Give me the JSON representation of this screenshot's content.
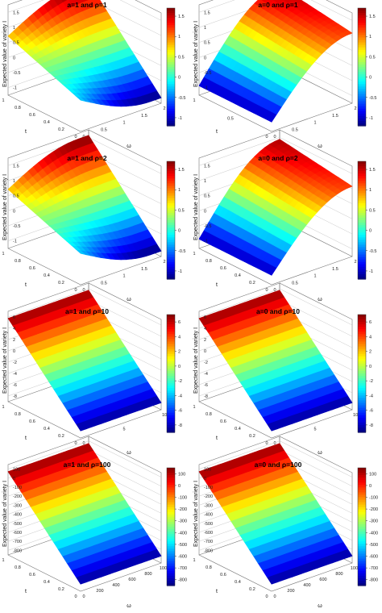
{
  "chart_data": [
    {
      "type": "surface",
      "title": "a=1 and ρ=1",
      "xlabel": "t",
      "ylabel": "ω",
      "zlabel": "Expected value of variety I",
      "x_ticks": [
        "0",
        "0.2",
        "0.4",
        "0.6",
        "0.8",
        "1"
      ],
      "y_ticks": [
        "0",
        "0.5",
        "1",
        "1.5",
        "2"
      ],
      "z_ticks": [
        "-1",
        "-0.5",
        "0",
        "0.5",
        "1",
        "1.5"
      ],
      "colorbar_ticks": [
        "-1",
        "-0.5",
        "0",
        "0.5",
        "1",
        "1.5"
      ],
      "zlim": [
        -1.2,
        1.7
      ],
      "surface_shape": "concave",
      "z_range": [
        -1.2,
        1.7
      ]
    },
    {
      "type": "surface",
      "title": "a=0 and ρ=1",
      "xlabel": "t",
      "ylabel": "ω",
      "zlabel": "Expected value of variety I",
      "x_ticks": [
        "0",
        "0.5",
        "1"
      ],
      "y_ticks": [
        "0",
        "0.5",
        "1",
        "1.5",
        "2"
      ],
      "z_ticks": [
        "-1",
        "-0.5",
        "0",
        "0.5",
        "1",
        "1.5"
      ],
      "colorbar_ticks": [
        "-1",
        "-0.5",
        "0",
        "0.5",
        "1",
        "1.5"
      ],
      "zlim": [
        -1.2,
        1.7
      ],
      "surface_shape": "hump",
      "z_range": [
        -1.2,
        1.7
      ]
    },
    {
      "type": "surface",
      "title": "a=1 and ρ=2",
      "xlabel": "t",
      "ylabel": "ω",
      "zlabel": "Expected value of variety I",
      "x_ticks": [
        "0",
        "0.2",
        "0.4",
        "0.6",
        "0.8",
        "1"
      ],
      "y_ticks": [
        "0",
        "0.5",
        "1",
        "1.5",
        "2"
      ],
      "z_ticks": [
        "-1",
        "-0.5",
        "0",
        "0.5",
        "1",
        "1.5"
      ],
      "colorbar_ticks": [
        "-1",
        "-0.5",
        "0",
        "0.5",
        "1",
        "1.5"
      ],
      "zlim": [
        -1.2,
        1.7
      ],
      "surface_shape": "concave",
      "z_range": [
        -1.2,
        1.7
      ]
    },
    {
      "type": "surface",
      "title": "a=0 and ρ=2",
      "xlabel": "t",
      "ylabel": "ω",
      "zlabel": "Expected value of variety I",
      "x_ticks": [
        "0",
        "0.2",
        "0.4",
        "0.6",
        "0.8",
        "1"
      ],
      "y_ticks": [
        "0",
        "0.5",
        "1",
        "1.5",
        "2"
      ],
      "z_ticks": [
        "-1",
        "-0.5",
        "0",
        "0.5",
        "1",
        "1.5"
      ],
      "colorbar_ticks": [
        "-1",
        "-0.5",
        "0",
        "0.5",
        "1",
        "1.5"
      ],
      "zlim": [
        -1.2,
        1.7
      ],
      "surface_shape": "hump",
      "z_range": [
        -1.2,
        1.7
      ]
    },
    {
      "type": "surface",
      "title": "a=1 and ρ=10",
      "xlabel": "t",
      "ylabel": "ω",
      "zlabel": "Expected value of variety I",
      "x_ticks": [
        "0",
        "0.2",
        "0.4",
        "0.6",
        "0.8",
        "1"
      ],
      "y_ticks": [
        "0",
        "5",
        "10"
      ],
      "z_ticks": [
        "-8",
        "-6",
        "-4",
        "-2",
        "0",
        "2",
        "4",
        "6"
      ],
      "colorbar_ticks": [
        "-8",
        "-6",
        "-4",
        "-2",
        "0",
        "2",
        "4",
        "6"
      ],
      "zlim": [
        -9,
        7
      ],
      "surface_shape": "plane",
      "z_range": [
        -9,
        7
      ]
    },
    {
      "type": "surface",
      "title": "a=0 and ρ=10",
      "xlabel": "t",
      "ylabel": "ω",
      "zlabel": "Expected value of variety I",
      "x_ticks": [
        "0",
        "0.2",
        "0.4",
        "0.6",
        "0.8",
        "1"
      ],
      "y_ticks": [
        "0",
        "5",
        "10"
      ],
      "z_ticks": [
        "-8",
        "-6",
        "-4",
        "-2",
        "0",
        "2",
        "4",
        "6"
      ],
      "colorbar_ticks": [
        "-8",
        "-6",
        "-4",
        "-2",
        "0",
        "2",
        "4",
        "6"
      ],
      "zlim": [
        -9,
        7
      ],
      "surface_shape": "plane",
      "z_range": [
        -9,
        7
      ]
    },
    {
      "type": "surface",
      "title": "a=1 and ρ=100",
      "xlabel": "t",
      "ylabel": "ω",
      "zlabel": "Expected value of variety I",
      "x_ticks": [
        "0",
        "0.2",
        "0.4",
        "0.6",
        "0.8",
        "1"
      ],
      "y_ticks": [
        "0",
        "200",
        "400",
        "600",
        "800",
        "1000"
      ],
      "z_ticks": [
        "-800",
        "-700",
        "-600",
        "-500",
        "-400",
        "-300",
        "-200",
        "-100",
        "0",
        "100"
      ],
      "colorbar_ticks": [
        "-800",
        "-700",
        "-600",
        "-500",
        "-400",
        "-300",
        "-200",
        "-100",
        "0",
        "100"
      ],
      "zlim": [
        -850,
        150
      ],
      "surface_shape": "plane",
      "z_range": [
        -850,
        150
      ]
    },
    {
      "type": "surface",
      "title": "a=0 and ρ=100",
      "xlabel": "t",
      "ylabel": "ω",
      "zlabel": "Expected value of variety I",
      "x_ticks": [
        "0",
        "0.2",
        "0.4",
        "0.6",
        "0.8",
        "1"
      ],
      "y_ticks": [
        "0",
        "200",
        "400",
        "600",
        "800",
        "1000"
      ],
      "z_ticks": [
        "-800",
        "-700",
        "-600",
        "-500",
        "-400",
        "-300",
        "-200",
        "-100",
        "0",
        "100"
      ],
      "colorbar_ticks": [
        "-800",
        "-700",
        "-600",
        "-500",
        "-400",
        "-300",
        "-200",
        "-100",
        "0",
        "100"
      ],
      "zlim": [
        -850,
        150
      ],
      "surface_shape": "plane",
      "z_range": [
        -850,
        150
      ]
    }
  ]
}
